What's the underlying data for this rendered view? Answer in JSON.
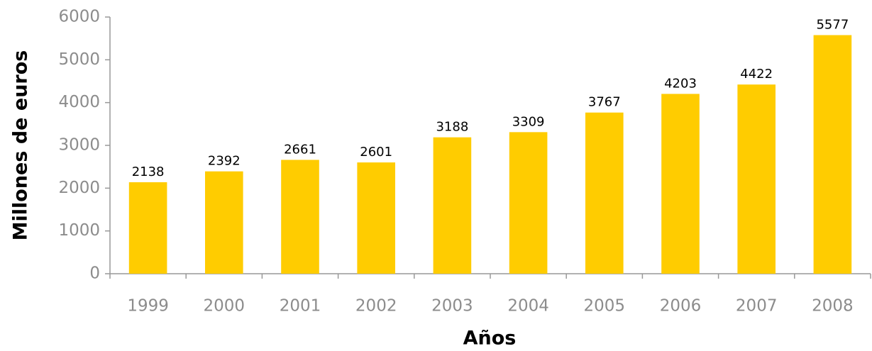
{
  "chart_data": {
    "type": "bar",
    "xlabel": "Años",
    "ylabel": "Millones de euros",
    "categories": [
      "1999",
      "2000",
      "2001",
      "2002",
      "2003",
      "2004",
      "2005",
      "2006",
      "2007",
      "2008"
    ],
    "values": [
      2138,
      2392,
      2661,
      2601,
      3188,
      3309,
      3767,
      4203,
      4422,
      5577
    ],
    "color": "#ffcc00",
    "ylim": [
      0,
      6000
    ],
    "yticks": [
      0,
      1000,
      2000,
      3000,
      4000,
      5000,
      6000
    ],
    "grid": false
  }
}
